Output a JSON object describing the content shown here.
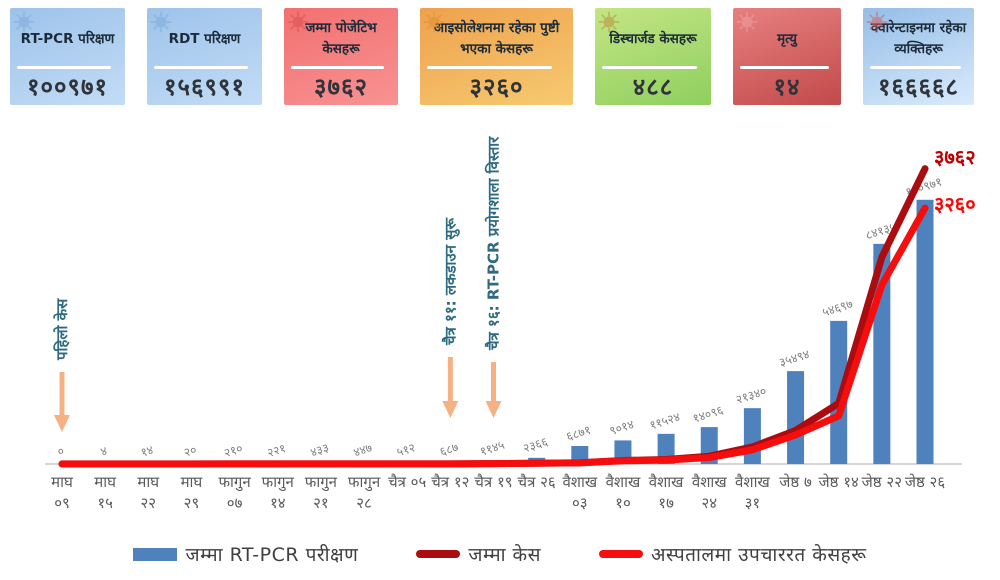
{
  "summary_cards": [
    {
      "title": "RT-PCR परिक्षण",
      "value": "१००९७१",
      "bg_from": "#9dc3ea",
      "bg_to": "#c2dcf6",
      "icon_color": "#7fa9d8"
    },
    {
      "title": "RDT परिक्षण",
      "value": "१५६९९१",
      "bg_from": "#9dc3ea",
      "bg_to": "#c2dcf6",
      "icon_color": "#7fa9d8"
    },
    {
      "title": "जम्मा पोजेटिभ केसहरू",
      "value": "३७६२",
      "bg_from": "#f27070",
      "bg_to": "#f89292",
      "icon_color": "#d94f4f"
    },
    {
      "title": "आइसोलेशनमा रहेका पुष्टी भएका केसहरू",
      "value": "३२६०",
      "bg_from": "#efa14d",
      "bg_to": "#f6ca70",
      "icon_color": "#dd8f33"
    },
    {
      "title": "डिस्चार्जड केसहरू",
      "value": "४८८",
      "bg_from": "#c4e584",
      "bg_to": "#8ecf5f",
      "icon_color": "#b98e3e"
    },
    {
      "title": "मृत्यु",
      "value": "१४",
      "bg_from": "#e88080",
      "bg_to": "#c24a4a",
      "icon_color": "#efa2a2"
    },
    {
      "title": "क्वारेन्टाइनमा रहेका व्यक्तिहरू",
      "value": "१६६६६८",
      "bg_from": "#95bde7",
      "bg_to": "#d9ebfc",
      "icon_color": "#d85c5c"
    }
  ],
  "chart_data": {
    "type": "bar+line combo",
    "categories": [
      "माघ\n०९",
      "माघ\n१५",
      "माघ\n२२",
      "माघ\n२९",
      "फागुन\n०७",
      "फागुन\n१४",
      "फागुन\n२१",
      "फागुन\n२८",
      "चैत्र ०५",
      "चैत्र १२",
      "चैत्र १९",
      "चैत्र २६",
      "वैशाख\n०३",
      "वैशाख\n१०",
      "वैशाख\n१७",
      "वैशाख\n२४",
      "वैशाख\n३१",
      "जेष्ठ ७",
      "जेष्ठ १४",
      "जेष्ठ २२",
      "जेष्ठ २६"
    ],
    "series": [
      {
        "name": "जम्मा RT-PCR परीक्षण",
        "kind": "bar",
        "axis": "primary",
        "values": [
          0,
          4,
          14,
          20,
          210,
          221,
          433,
          447,
          512,
          687,
          1145,
          2366,
          6871,
          9014,
          11524,
          14096,
          21340,
          35494,
          54697,
          84135,
          100971
        ],
        "labels": [
          "०",
          "४",
          "१४",
          "२०",
          "२१०",
          "२२१",
          "४३३",
          "४४७",
          "५१२",
          "६८७",
          "११४५",
          "२३६६",
          "६८७१",
          "९०१४",
          "११५२४",
          "१४०९६",
          "२१३४०",
          "३५४९४",
          "५४६९७",
          "८४१३५",
          "१००९७१"
        ]
      },
      {
        "name": "जम्मा केस",
        "kind": "line",
        "axis": "secondary",
        "values": [
          1,
          1,
          1,
          1,
          1,
          1,
          1,
          1,
          1,
          2,
          5,
          9,
          16,
          45,
          57,
          99,
          217,
          427,
          772,
          2634,
          3762
        ],
        "end_label": "३७६२"
      },
      {
        "name": "अस्पतालमा उपचाररत केसहरू",
        "kind": "line",
        "axis": "secondary",
        "values": [
          0,
          0,
          0,
          0,
          1,
          1,
          1,
          1,
          1,
          2,
          5,
          9,
          15,
          41,
          49,
          82,
          180,
          370,
          613,
          2280,
          3260
        ],
        "end_label": "३२६०"
      }
    ],
    "primary_axis_max": 120000,
    "secondary_axis_max": 4000,
    "grid": "off",
    "legend_position": "bottom",
    "annotations": [
      {
        "text": "पहिलो केस",
        "target_index": 0
      },
      {
        "text": "चैत्र ११: लकडाउन सुरू",
        "target_index": 9
      },
      {
        "text": "चैत्र १६: RT-PCR प्रयोगशाला विस्तार",
        "target_index": 10
      }
    ],
    "legend": [
      {
        "label": "जम्मा RT-PCR परीक्षण",
        "swatch": "bar"
      },
      {
        "label": "जम्मा केस",
        "swatch": "line-dark"
      },
      {
        "label": "अस्पतालमा उपचाररत केसहरू",
        "swatch": "line-bright"
      }
    ],
    "palette": {
      "bar": "#4f81bd",
      "total_cases_line": "#ab0c10",
      "hospital_line": "#f60d0d",
      "arrow": "#f5b183",
      "annotation_text": "#2e6b80",
      "value_label": "#7f7f7f",
      "axis_label": "#595959",
      "baseline": "#d6d6d6",
      "end_label_total": "#c00000",
      "end_label_hospital": "#fb0606"
    }
  }
}
